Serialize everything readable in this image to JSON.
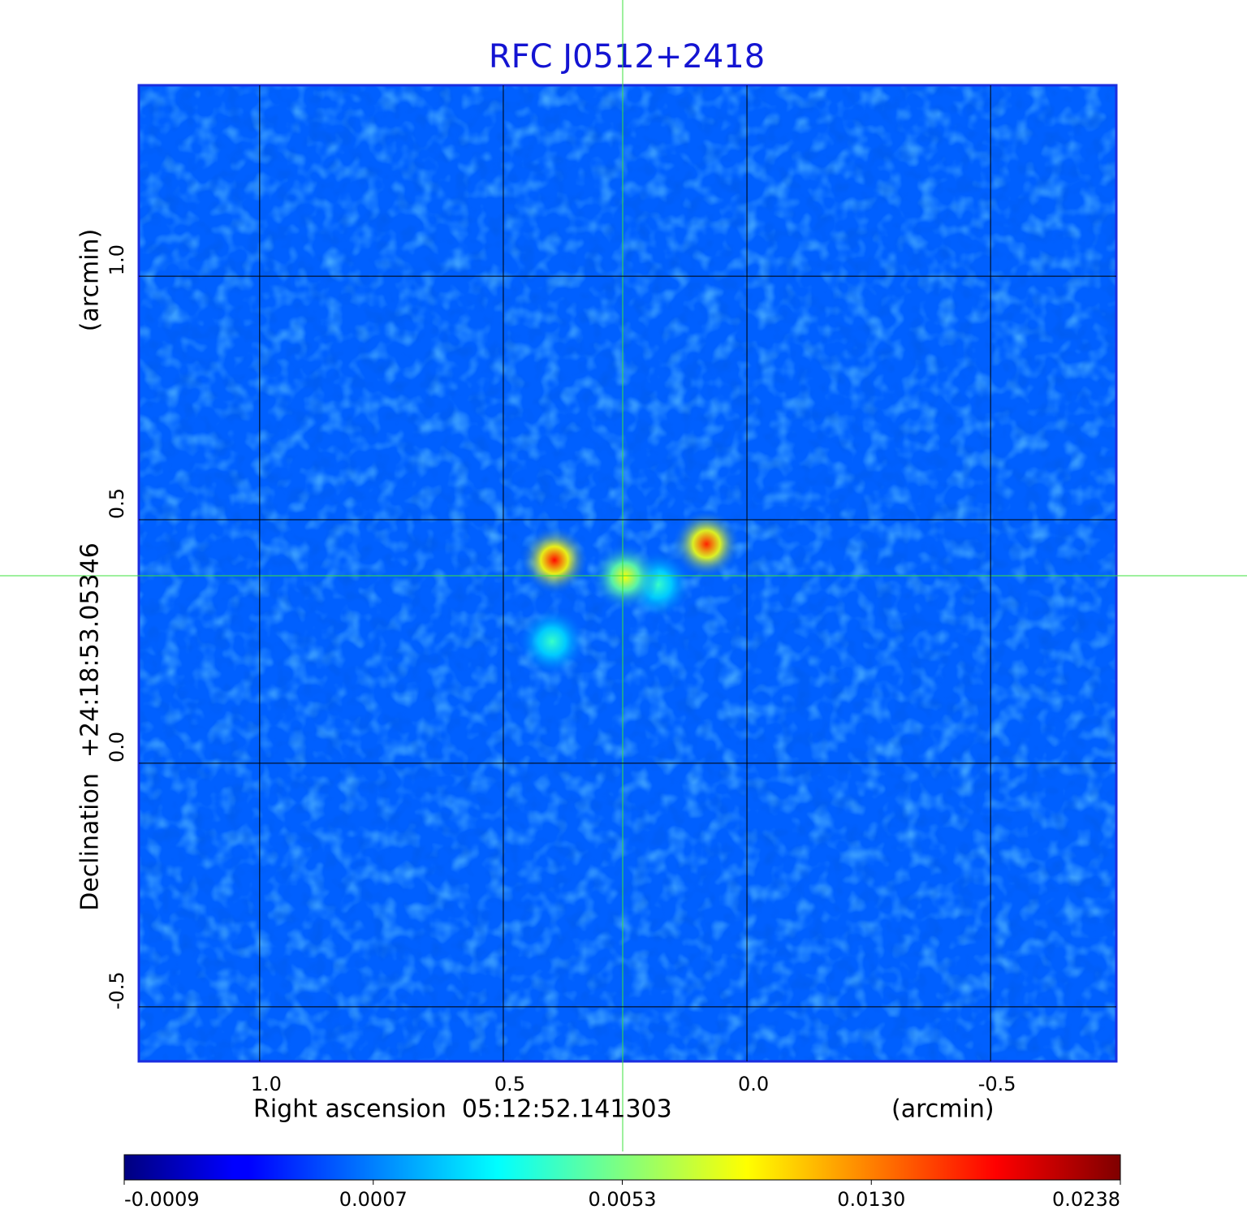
{
  "chart_data": {
    "type": "image",
    "title": "RFC J0512+2418",
    "x_label": "Right ascension  05:12:52.141303",
    "x_unit": "(arcmin)",
    "y_label": "Declination  +24:18:53.05346",
    "y_unit": "(arcmin)",
    "xlim": [
      1.248,
      -0.758
    ],
    "ylim": [
      -0.612,
      1.392
    ],
    "xticks": [
      {
        "value": 1,
        "label": "1.0"
      },
      {
        "value": 0.5,
        "label": "0.5"
      },
      {
        "value": 0,
        "label": "0.0"
      },
      {
        "value": -0.5,
        "label": "-0.5"
      }
    ],
    "yticks": [
      {
        "value": -0.5,
        "label": "-0.5"
      },
      {
        "value": 0,
        "label": "0.0"
      },
      {
        "value": 0.5,
        "label": "0.5"
      },
      {
        "value": 1,
        "label": "1.0"
      }
    ],
    "grid": true,
    "colormap": "jet",
    "background": 0.0005,
    "colorbar": {
      "lim": [
        -0.0009,
        0.0238
      ],
      "ticks": [
        -0.0009,
        0.0007,
        0.0053,
        {
          "value": 0.013,
          "label": "0.0130"
        },
        0.0238
      ]
    },
    "sources": {
      "x": [
        0.395,
        0.083,
        0.25,
        0.4,
        0.183
      ],
      "y": [
        0.417,
        0.45,
        0.383,
        0.25,
        0.367
      ],
      "values": [
        0.018,
        0.017,
        0.009,
        0.004,
        0.004
      ]
    }
  }
}
